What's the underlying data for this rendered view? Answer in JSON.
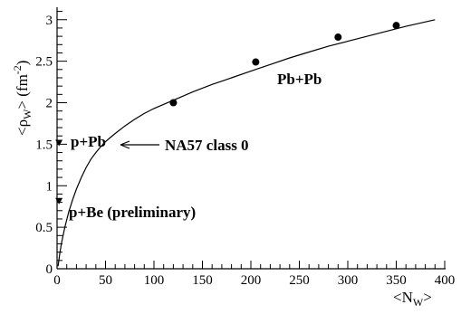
{
  "chart_data": {
    "type": "scatter",
    "xlabel": "<N",
    "xlabel_sub": "W",
    "xlabel_end": ">",
    "ylabel": "<ρ",
    "ylabel_sub": "W",
    "ylabel_mid": "> (fm",
    "ylabel_sup": "-2",
    "ylabel_end": ")",
    "xlim": [
      0,
      400
    ],
    "ylim": [
      0,
      3.15
    ],
    "x_ticks": [
      0,
      50,
      100,
      150,
      200,
      250,
      300,
      350,
      400
    ],
    "y_ticks": [
      0,
      0.5,
      1,
      1.5,
      2,
      2.5,
      3
    ],
    "y_tick_labels": [
      "0",
      "0.5",
      "1",
      "1.5",
      "2",
      "2.5",
      "3"
    ],
    "grid": false,
    "series": [
      {
        "name": "Pb+Pb",
        "marker": "circle",
        "x": [
          120,
          205,
          290,
          350
        ],
        "y": [
          2.0,
          2.49,
          2.79,
          2.93
        ]
      },
      {
        "name": "p+Pb",
        "marker": "triangle-down",
        "x": [
          2
        ],
        "y": [
          1.52
        ]
      },
      {
        "name": "p+Be (preliminary)",
        "marker": "triangle-down",
        "x": [
          2
        ],
        "y": [
          0.82
        ]
      }
    ],
    "curve": {
      "x": [
        1,
        3,
        5,
        8,
        12,
        16,
        20,
        25,
        30,
        35,
        40,
        45,
        50,
        55,
        60,
        70,
        80,
        90,
        100,
        110,
        120,
        140,
        160,
        180,
        200,
        220,
        240,
        260,
        280,
        300,
        320,
        340,
        360,
        375,
        390
      ],
      "y": [
        0.03,
        0.2,
        0.33,
        0.5,
        0.68,
        0.83,
        0.96,
        1.1,
        1.22,
        1.32,
        1.4,
        1.47,
        1.53,
        1.58,
        1.63,
        1.72,
        1.8,
        1.87,
        1.93,
        1.98,
        2.03,
        2.13,
        2.22,
        2.3,
        2.38,
        2.46,
        2.54,
        2.61,
        2.68,
        2.74,
        2.8,
        2.86,
        2.92,
        2.96,
        3.0
      ]
    },
    "annotations": {
      "pbpb": "Pb+Pb",
      "ppb": "p+Pb",
      "pbe": "p+Be (preliminary)",
      "na57": "NA57 class 0"
    }
  }
}
